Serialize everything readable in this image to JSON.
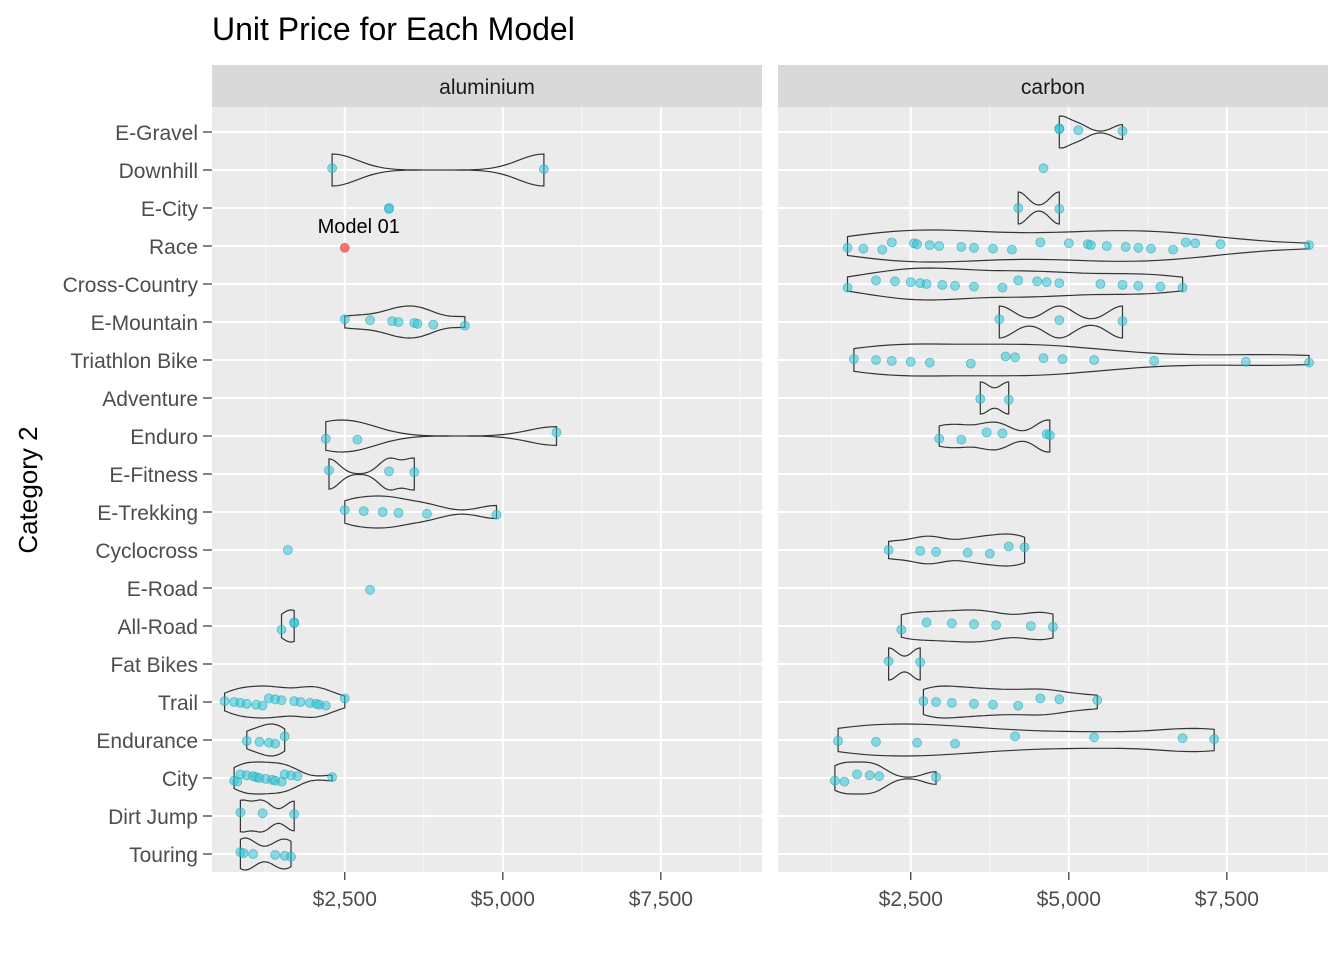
{
  "chart_data": {
    "type": "scatter",
    "title": "Unit Price for Each Model",
    "ylabel": "Category 2",
    "xlabel": "",
    "x_ticks": [
      "$2,500",
      "$5,000",
      "$7,500"
    ],
    "x_tick_values": [
      2500,
      5000,
      7500
    ],
    "xlim": [
      400,
      9100
    ],
    "grid": true,
    "legend": "none",
    "categories": [
      "E-Gravel",
      "Downhill",
      "E-City",
      "Race",
      "Cross-Country",
      "E-Mountain",
      "Triathlon Bike",
      "Adventure",
      "Enduro",
      "E-Fitness",
      "E-Trekking",
      "Cyclocross",
      "E-Road",
      "All-Road",
      "Fat Bikes",
      "Trail",
      "Endurance",
      "City",
      "Dirt Jump",
      "Touring"
    ],
    "colors": {
      "point": "#2ec4d6",
      "highlight": "#ff5a5a",
      "panel_bg": "#ebebeb",
      "strip_bg": "#d9d9d9",
      "grid": "#ffffff",
      "outline": "#333333"
    },
    "annotation": {
      "text": "Model 01",
      "panel": "aluminium",
      "category": "Race",
      "x": 2500
    },
    "panels": [
      {
        "name": "aluminium",
        "groups": [
          {
            "category": "Downhill",
            "points": [
              2300,
              5650
            ]
          },
          {
            "category": "E-City",
            "points": [
              3200,
              3200
            ]
          },
          {
            "category": "Race",
            "points": [
              2500
            ],
            "highlight": true
          },
          {
            "category": "E-Mountain",
            "points": [
              2500,
              2900,
              3250,
              3350,
              3600,
              3650,
              3900,
              4400
            ]
          },
          {
            "category": "Enduro",
            "points": [
              2200,
              2700,
              5850
            ]
          },
          {
            "category": "E-Fitness",
            "points": [
              2250,
              3200,
              3600
            ]
          },
          {
            "category": "E-Trekking",
            "points": [
              2500,
              2800,
              3100,
              3350,
              3800,
              4900
            ]
          },
          {
            "category": "Cyclocross",
            "points": [
              1600
            ]
          },
          {
            "category": "E-Road",
            "points": [
              2900
            ]
          },
          {
            "category": "All-Road",
            "points": [
              1500,
              1700,
              1700
            ]
          },
          {
            "category": "Trail",
            "points": [
              600,
              750,
              850,
              950,
              1100,
              1200,
              1300,
              1400,
              1500,
              1700,
              1800,
              1950,
              2050,
              2100,
              2200,
              2500
            ]
          },
          {
            "category": "Endurance",
            "points": [
              950,
              1150,
              1300,
              1400,
              1550
            ]
          },
          {
            "category": "City",
            "points": [
              750,
              800,
              850,
              950,
              1050,
              1100,
              1150,
              1250,
              1350,
              1400,
              1500,
              1550,
              1650,
              1750,
              2300
            ]
          },
          {
            "category": "Dirt Jump",
            "points": [
              850,
              1200,
              1700
            ]
          },
          {
            "category": "Touring",
            "points": [
              850,
              900,
              1050,
              1400,
              1550,
              1650
            ]
          }
        ]
      },
      {
        "name": "carbon",
        "groups": [
          {
            "category": "E-Gravel",
            "points": [
              4850,
              4850,
              5150,
              5850
            ]
          },
          {
            "category": "Downhill",
            "points": [
              4600
            ]
          },
          {
            "category": "E-City",
            "points": [
              4200,
              4850
            ]
          },
          {
            "category": "Race",
            "points": [
              1500,
              1750,
              2050,
              2200,
              2550,
              2600,
              2800,
              2950,
              3300,
              3500,
              3800,
              4100,
              4550,
              5000,
              5300,
              5350,
              5600,
              5900,
              6100,
              6300,
              6650,
              6850,
              7000,
              7400,
              8800
            ]
          },
          {
            "category": "Cross-Country",
            "points": [
              1500,
              1950,
              2250,
              2500,
              2650,
              2750,
              3000,
              3200,
              3500,
              3950,
              4200,
              4500,
              4650,
              4850,
              5500,
              5850,
              6100,
              6450,
              6800
            ]
          },
          {
            "category": "E-Mountain",
            "points": [
              3900,
              4850,
              5850
            ]
          },
          {
            "category": "Triathlon Bike",
            "points": [
              1600,
              1950,
              2200,
              2500,
              2800,
              3450,
              4000,
              4150,
              4600,
              4900,
              5400,
              6350,
              7800,
              8800
            ]
          },
          {
            "category": "Adventure",
            "points": [
              3600,
              4050
            ]
          },
          {
            "category": "Enduro",
            "points": [
              2950,
              3300,
              3700,
              3950,
              4650,
              4700
            ]
          },
          {
            "category": "Cyclocross",
            "points": [
              2150,
              2650,
              2900,
              3400,
              3750,
              4050,
              4300
            ]
          },
          {
            "category": "All-Road",
            "points": [
              2350,
              2750,
              3150,
              3500,
              3850,
              4400,
              4750
            ]
          },
          {
            "category": "Fat Bikes",
            "points": [
              2150,
              2650
            ]
          },
          {
            "category": "Trail",
            "points": [
              2700,
              2900,
              3150,
              3500,
              3800,
              4200,
              4550,
              4850,
              5450
            ]
          },
          {
            "category": "Endurance",
            "points": [
              1350,
              1950,
              2600,
              3200,
              4150,
              5400,
              6800,
              7300
            ]
          },
          {
            "category": "City",
            "points": [
              1300,
              1450,
              1650,
              1850,
              2000,
              2900
            ]
          }
        ]
      }
    ]
  }
}
